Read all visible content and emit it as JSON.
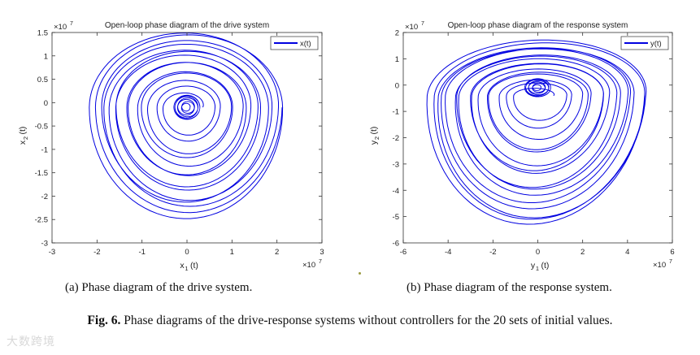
{
  "chart_data": [
    {
      "type": "line",
      "title": "Open-loop phase diagram of the drive system",
      "xlabel_main": "x",
      "xlabel_sub": "1",
      "xlabel_suffix": "(t)",
      "ylabel_main": "x",
      "ylabel_sub": "2",
      "ylabel_suffix": "(t)",
      "exponent_text": "×10",
      "exponent_power": "7",
      "xlim": [
        -3,
        3
      ],
      "ylim": [
        -3,
        1.5
      ],
      "xticks": [
        "-3",
        "-2",
        "-1",
        "0",
        "1",
        "2",
        "3"
      ],
      "yticks": [
        "-3",
        "-2.5",
        "-2",
        "-1.5",
        "-1",
        "-0.5",
        "0",
        "0.5",
        "1",
        "1.5"
      ],
      "legend": "x(t)",
      "legend_position": "top-right",
      "series_color": "#0000e0",
      "center": [
        0,
        -0.1
      ],
      "inner_radius": [
        0.35,
        0.3
      ],
      "outer_radius": [
        2.2,
        2.2
      ],
      "spiral_turns": 14
    },
    {
      "type": "line",
      "title": "Open-loop phase diagram of the response system",
      "xlabel_main": "y",
      "xlabel_sub": "1",
      "xlabel_suffix": "(t)",
      "ylabel_main": "y",
      "ylabel_sub": "2",
      "ylabel_suffix": "(t)",
      "exponent_text": "×10",
      "exponent_power": "7",
      "xlim": [
        -6,
        6
      ],
      "ylim": [
        -6,
        2
      ],
      "xticks": [
        "-6",
        "-4",
        "-2",
        "0",
        "2",
        "4",
        "6"
      ],
      "yticks": [
        "-6",
        "-5",
        "-4",
        "-3",
        "-2",
        "-1",
        "0",
        "1",
        "2"
      ],
      "legend": "y(t)",
      "legend_position": "top-right",
      "series_color": "#0000e0",
      "center": [
        0,
        -0.4
      ],
      "inner_radius": [
        0.7,
        0.4
      ],
      "outer_radius": [
        5.0,
        4.8
      ],
      "spiral_turns": 16
    }
  ],
  "captions": {
    "a": "(a)  Phase diagram of the drive system.",
    "b": "(b)  Phase diagram of the response system.",
    "fig_label": "Fig. 6.",
    "fig_text": "Phase diagrams of the drive-response systems without controllers for the 20 sets of initial values."
  },
  "watermark": "大数跨境"
}
